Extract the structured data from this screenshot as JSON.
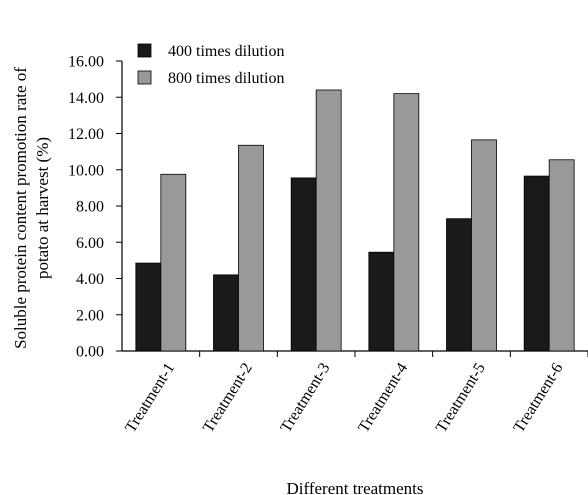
{
  "chart_data": {
    "type": "bar",
    "title": "",
    "xlabel": "Different treatments",
    "ylabel_lines": [
      "Soluble protein content promotion rate of",
      "potato at harvest (%)"
    ],
    "categories": [
      "Treatment-1",
      "Treatment-2",
      "Treatment-3",
      "Treatment-4",
      "Treatment-5",
      "Treatment-6"
    ],
    "series": [
      {
        "name": "400 times dilution",
        "color": "#1a1a1a",
        "values": [
          4.85,
          4.2,
          9.55,
          5.45,
          7.3,
          9.65
        ]
      },
      {
        "name": "800 times dilution",
        "color": "#999999",
        "values": [
          9.75,
          11.35,
          14.4,
          14.2,
          11.65,
          10.55
        ]
      }
    ],
    "ylim": [
      0,
      16
    ],
    "yticks": [
      "0.00",
      "2.00",
      "4.00",
      "6.00",
      "8.00",
      "10.00",
      "12.00",
      "14.00",
      "16.00"
    ],
    "grid": false,
    "legend_position": "top-left"
  }
}
